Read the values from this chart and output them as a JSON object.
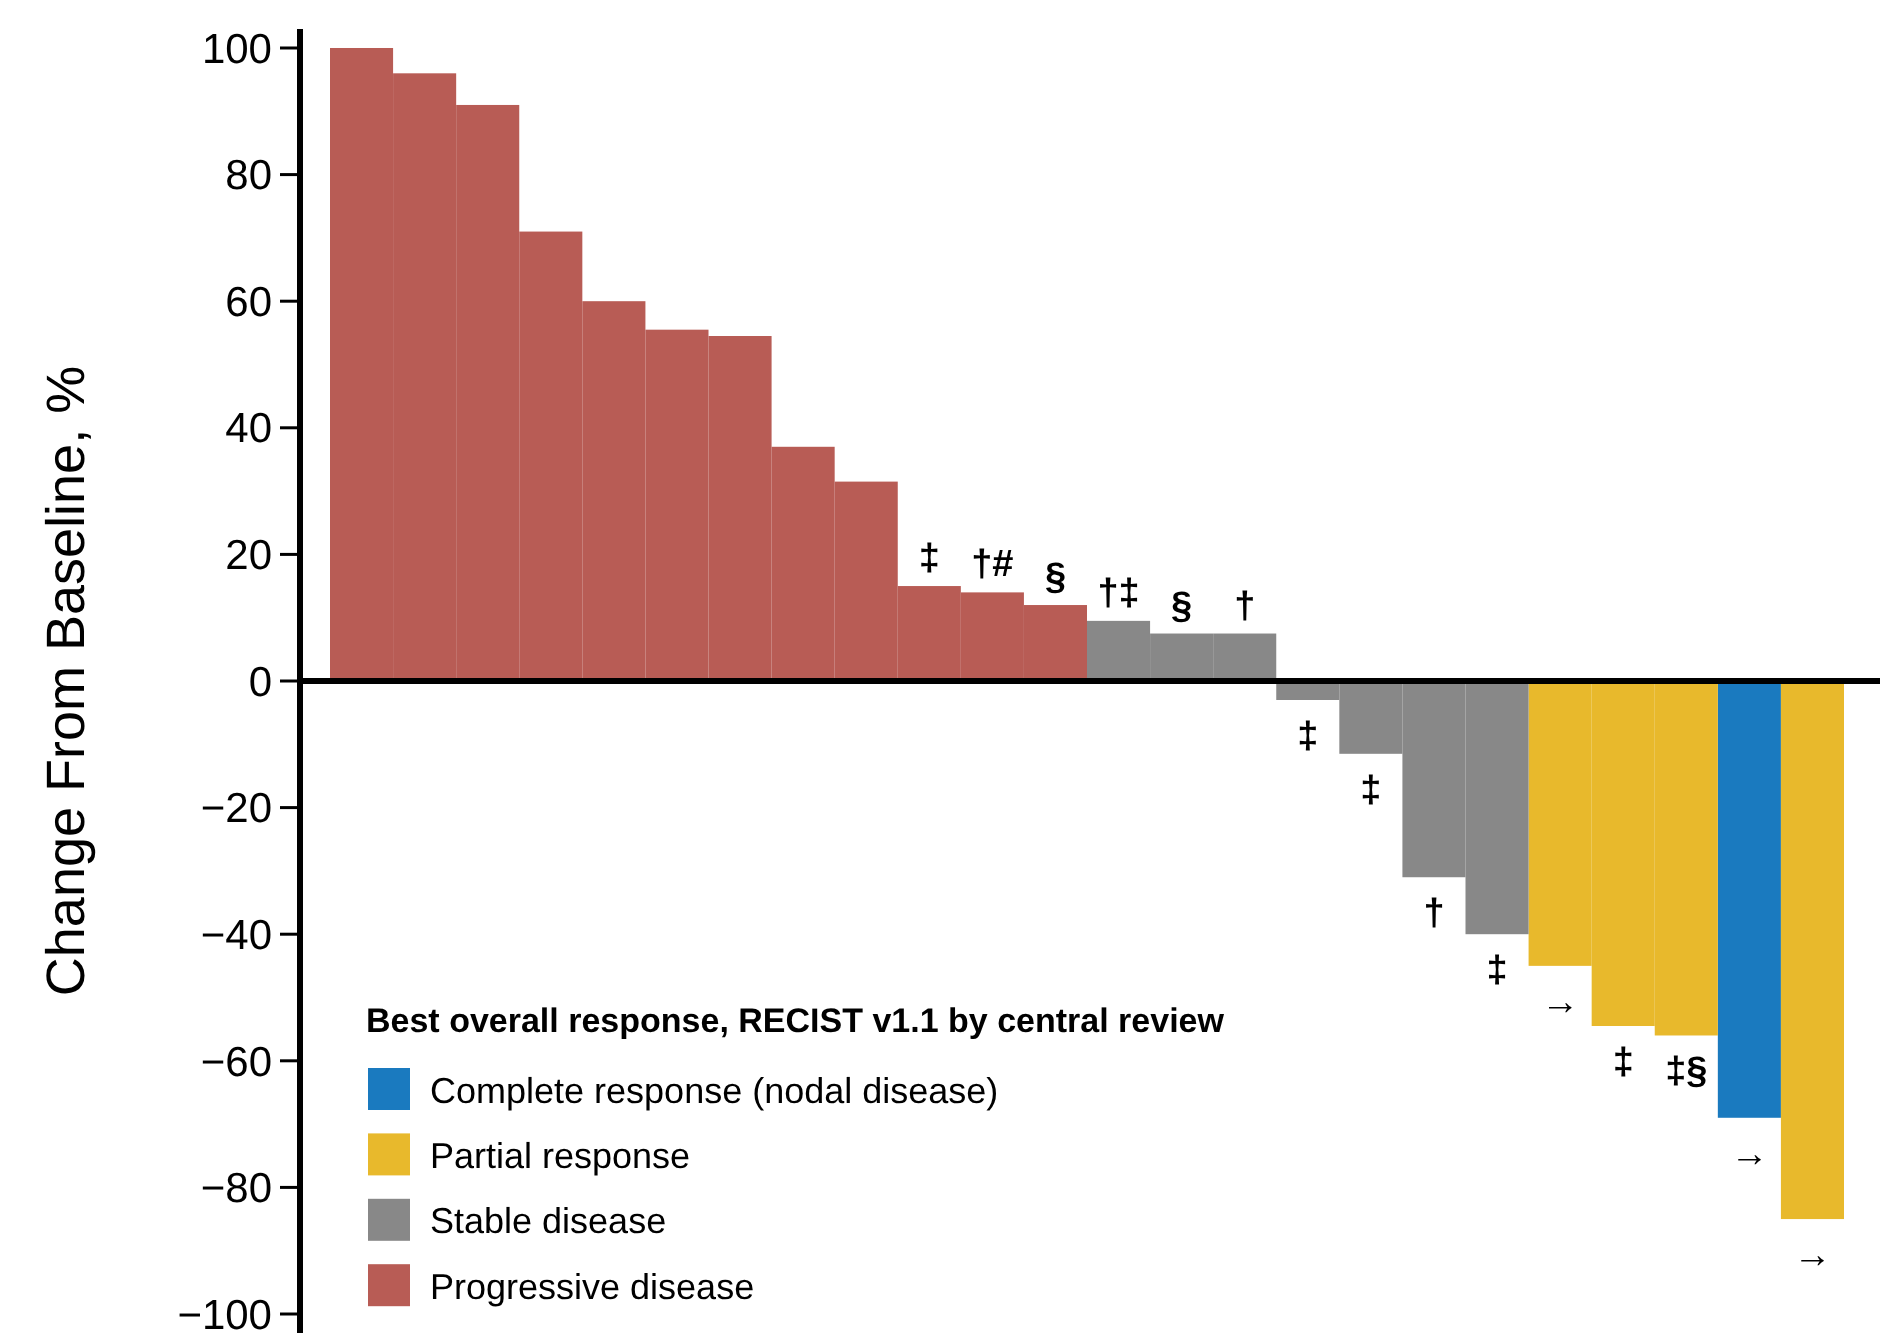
{
  "chart_data": {
    "type": "bar",
    "ylabel": "Change From Baseline, %",
    "legend_title": "Best overall response, RECIST v1.1 by central review",
    "legend": "bottom left",
    "categories": [
      null,
      null,
      null,
      null,
      null,
      null,
      null,
      null,
      null,
      null,
      null,
      null,
      null,
      null,
      null,
      null,
      null,
      null,
      null,
      null,
      null,
      null,
      null,
      null
    ],
    "ylim": [
      -103,
      103
    ],
    "yticks": [
      -100,
      -80,
      -60,
      -40,
      -20,
      0,
      20,
      40,
      60,
      80,
      100
    ],
    "series": [
      {
        "name": "Complete response (nodal disease)",
        "color": "#1a7abf",
        "values": [
          null,
          null,
          null,
          null,
          null,
          null,
          null,
          null,
          null,
          null,
          null,
          null,
          null,
          null,
          null,
          null,
          null,
          null,
          null,
          null,
          null,
          null,
          -69,
          null
        ],
        "value_labels": [
          null,
          null,
          null,
          null,
          null,
          null,
          null,
          null,
          null,
          null,
          null,
          null,
          null,
          null,
          null,
          null,
          null,
          null,
          null,
          null,
          null,
          null,
          "→",
          null
        ]
      },
      {
        "name": "Partial response",
        "color": "#e8b92c",
        "values": [
          null,
          null,
          null,
          null,
          null,
          null,
          null,
          null,
          null,
          null,
          null,
          null,
          null,
          null,
          null,
          null,
          null,
          null,
          null,
          -45,
          -54.5,
          -56,
          null,
          -85
        ],
        "value_labels": [
          null,
          null,
          null,
          null,
          null,
          null,
          null,
          null,
          null,
          null,
          null,
          null,
          null,
          null,
          null,
          null,
          null,
          null,
          null,
          "→",
          "‡",
          "‡§",
          null,
          "→"
        ]
      },
      {
        "name": "Stable disease",
        "color": "#888888",
        "values": [
          null,
          null,
          null,
          null,
          null,
          null,
          null,
          null,
          null,
          null,
          null,
          null,
          9.5,
          7.5,
          7.5,
          -3,
          -11.5,
          -31,
          -40,
          null,
          null,
          null,
          null,
          null
        ],
        "value_labels": [
          null,
          null,
          null,
          null,
          null,
          null,
          null,
          null,
          null,
          null,
          null,
          null,
          "†‡",
          "§",
          "†",
          "‡",
          "‡",
          "†",
          "‡",
          null,
          null,
          null,
          null,
          null
        ]
      },
      {
        "name": "Progressive disease",
        "color": "#b85c55",
        "values": [
          100,
          96,
          91,
          71,
          60,
          55.5,
          54.5,
          37,
          31.5,
          15,
          14,
          12,
          null,
          null,
          null,
          null,
          null,
          null,
          null,
          null,
          null,
          null,
          null,
          null
        ],
        "value_labels": [
          null,
          null,
          null,
          null,
          null,
          null,
          null,
          null,
          null,
          "‡",
          "†#",
          "§",
          null,
          null,
          null,
          null,
          null,
          null,
          null,
          null,
          null,
          null,
          null,
          null
        ]
      }
    ]
  }
}
